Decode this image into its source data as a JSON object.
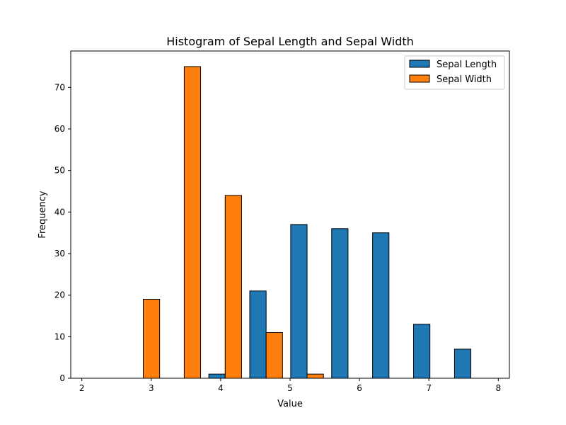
{
  "chart_data": {
    "type": "bar",
    "title": "Histogram of Sepal Length and Sepal Width",
    "xlabel": "Value",
    "ylabel": "Frequency",
    "xlim": [
      1.84,
      8.16
    ],
    "ylim": [
      0,
      78.75
    ],
    "xticks": [
      2,
      3,
      4,
      5,
      6,
      7,
      8
    ],
    "yticks": [
      0,
      10,
      20,
      30,
      40,
      50,
      60,
      70
    ],
    "legend_position": "top-right",
    "bin_edges": [
      2.0,
      2.59,
      3.18,
      3.77,
      4.36,
      4.95,
      5.54,
      6.13,
      6.72,
      7.31,
      7.9
    ],
    "series": [
      {
        "name": "Sepal Length",
        "color": "#1f77b4",
        "values": [
          0,
          0,
          0,
          1,
          21,
          37,
          36,
          35,
          13,
          7
        ]
      },
      {
        "name": "Sepal Width",
        "color": "#ff7f0e",
        "values": [
          0,
          19,
          75,
          44,
          11,
          1,
          0,
          0,
          0,
          0
        ]
      }
    ]
  }
}
